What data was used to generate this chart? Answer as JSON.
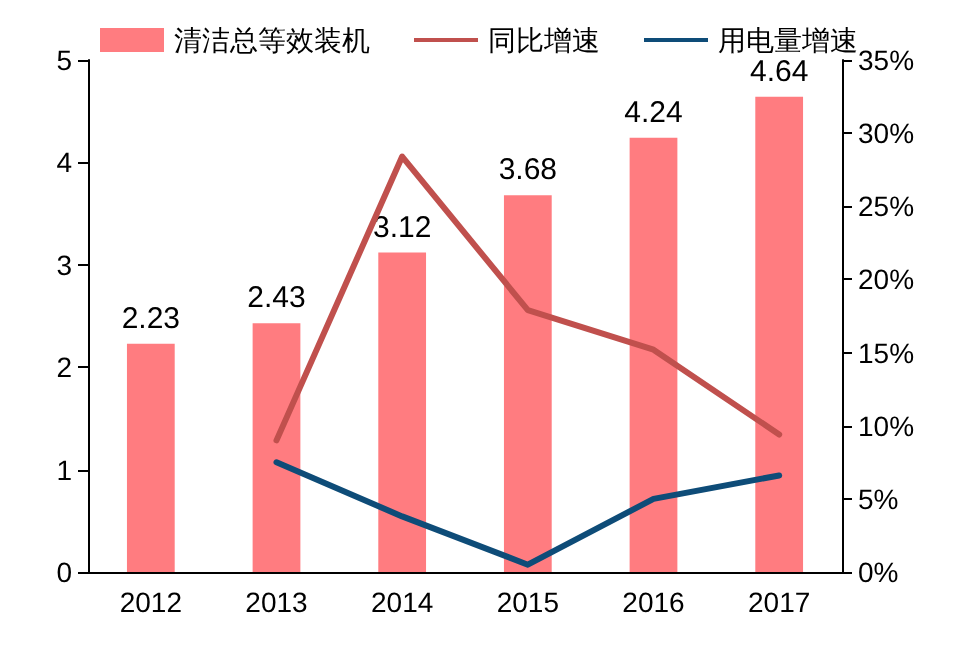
{
  "chart_data": {
    "type": "bar",
    "categories": [
      "2012",
      "2013",
      "2014",
      "2015",
      "2016",
      "2017"
    ],
    "series": [
      {
        "name": "清洁总等效装机",
        "color": "#ff7c80",
        "values": [
          2.23,
          2.43,
          3.12,
          3.68,
          4.24,
          4.64
        ],
        "value_labels": [
          "2.23",
          "2.43",
          "3.12",
          "3.68",
          "4.24",
          "4.64"
        ]
      },
      {
        "name": "同比增速",
        "type": "line",
        "axis": "y2",
        "color": "#c0504d",
        "values": [
          null,
          9.0,
          28.4,
          17.9,
          15.2,
          9.4
        ]
      },
      {
        "name": "用电量增速",
        "type": "line",
        "axis": "y2",
        "color": "#0e4c78",
        "values": [
          null,
          7.5,
          3.8,
          0.5,
          5.0,
          6.6
        ]
      }
    ],
    "ylim": [
      0,
      5
    ],
    "yticks": [
      0,
      1,
      2,
      3,
      4,
      5
    ],
    "y2lim": [
      0,
      35
    ],
    "y2ticks": [
      {
        "value": 0,
        "label": "0%"
      },
      {
        "value": 5,
        "label": "5%"
      },
      {
        "value": 10,
        "label": "10%"
      },
      {
        "value": 15,
        "label": "15%"
      },
      {
        "value": 20,
        "label": "20%"
      },
      {
        "value": 25,
        "label": "25%"
      },
      {
        "value": 30,
        "label": "30%"
      },
      {
        "value": 35,
        "label": "35%"
      }
    ],
    "legend": "top",
    "grid": false,
    "marker": "none",
    "line_style": "solid"
  }
}
